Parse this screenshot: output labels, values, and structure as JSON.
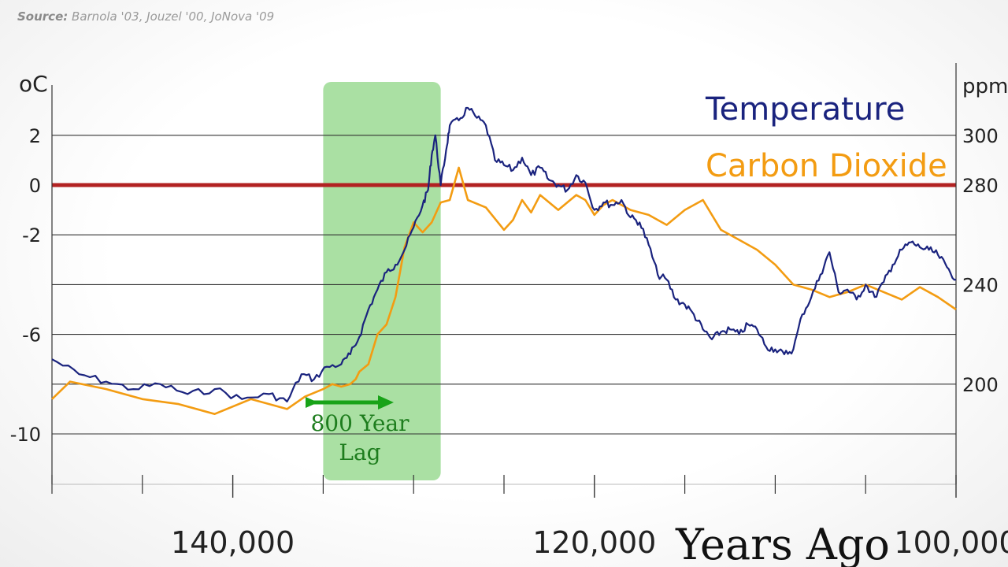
{
  "source": {
    "label": "Source:",
    "text": "Barnola '03, Jouzel '00, JoNova '09"
  },
  "chart_data": {
    "type": "line",
    "xlabel": "Years Ago",
    "xlim": [
      150000,
      100000
    ],
    "xticks_major": [
      140000,
      120000,
      100000
    ],
    "xtick_labels": [
      "140,000",
      "120,000",
      "100,000"
    ],
    "xticks_minor": [
      150000,
      145000,
      135000,
      130000,
      125000,
      115000,
      110000,
      105000
    ],
    "left_axis": {
      "unit": "oC",
      "ylim": [
        -12,
        4
      ],
      "ticks": [
        2,
        0,
        -2,
        -6,
        -10
      ],
      "tick_labels": [
        "2",
        "0",
        "-2",
        "-6",
        "-10"
      ],
      "gridlines": [
        2,
        0,
        -2,
        -4,
        -6,
        -8,
        -10
      ]
    },
    "right_axis": {
      "unit": "ppm",
      "ticks": [
        300,
        280,
        240,
        200
      ],
      "tick_labels": [
        "300",
        "280",
        "240",
        "200"
      ]
    },
    "reference_line": {
      "y": 0,
      "color": "#b22222"
    },
    "grid": true,
    "legend_position": "top-right",
    "series": [
      {
        "name": "Temperature",
        "color": "#1a237e",
        "axis": "left",
        "x": [
          150000,
          148500,
          147000,
          145500,
          144000,
          142500,
          141000,
          139500,
          138000,
          137000,
          136200,
          135500,
          134800,
          134000,
          133500,
          133000,
          132500,
          132000,
          131500,
          131000,
          130500,
          130000,
          129500,
          129200,
          129000,
          128800,
          128500,
          128200,
          128000,
          127500,
          127000,
          126500,
          126000,
          125500,
          125000,
          124500,
          124000,
          123500,
          123000,
          122500,
          122000,
          121500,
          121000,
          120500,
          120000,
          119500,
          119000,
          118500,
          118000,
          117500,
          117000,
          116500,
          116000,
          115500,
          115000,
          114500,
          114000,
          113500,
          113000,
          112500,
          112000,
          111500,
          111000,
          110500,
          110000,
          109500,
          109000,
          108500,
          108000,
          107500,
          107000,
          106500,
          106000,
          105500,
          105000,
          104500,
          104000,
          103500,
          103000,
          102500,
          102000,
          101500,
          101000,
          100500,
          100000
        ],
        "y": [
          -7.0,
          -7.6,
          -7.9,
          -8.2,
          -8.0,
          -8.4,
          -8.2,
          -8.6,
          -8.4,
          -8.7,
          -7.6,
          -7.8,
          -7.3,
          -7.2,
          -6.8,
          -6.1,
          -5.0,
          -4.2,
          -3.5,
          -3.2,
          -2.6,
          -1.7,
          -0.8,
          -0.2,
          1.2,
          2.0,
          0.0,
          1.4,
          2.4,
          2.6,
          3.1,
          2.7,
          2.4,
          1.0,
          0.8,
          0.6,
          1.1,
          0.4,
          0.7,
          0.2,
          0.0,
          -0.2,
          0.4,
          0.1,
          -1.0,
          -0.7,
          -0.8,
          -0.6,
          -1.3,
          -1.5,
          -2.4,
          -3.6,
          -3.8,
          -4.6,
          -4.8,
          -5.2,
          -5.8,
          -6.2,
          -5.9,
          -5.8,
          -6.0,
          -5.6,
          -5.8,
          -6.5,
          -6.6,
          -6.8,
          -6.6,
          -5.2,
          -4.5,
          -3.6,
          -2.7,
          -4.3,
          -4.2,
          -4.6,
          -4.0,
          -4.5,
          -3.9,
          -3.2,
          -2.6,
          -2.3,
          -2.5,
          -2.6,
          -2.8,
          -3.3,
          -3.8
        ]
      },
      {
        "name": "Carbon Dioxide",
        "color": "#f39c12",
        "axis": "left",
        "x": [
          150000,
          149000,
          147000,
          145000,
          143000,
          141000,
          139000,
          137000,
          136000,
          135000,
          134500,
          134000,
          133500,
          133200,
          133000,
          132500,
          132000,
          131500,
          131000,
          130500,
          130000,
          129500,
          129000,
          128500,
          128000,
          127500,
          127000,
          126000,
          125000,
          124500,
          124000,
          123500,
          123000,
          122000,
          121000,
          120500,
          120000,
          119500,
          119000,
          118000,
          117000,
          116000,
          115000,
          114000,
          113000,
          112000,
          111000,
          110000,
          109000,
          108000,
          107000,
          106000,
          105000,
          104000,
          103000,
          102000,
          101000,
          100000
        ],
        "y": [
          -8.6,
          -7.9,
          -8.2,
          -8.6,
          -8.8,
          -9.2,
          -8.6,
          -9.0,
          -8.5,
          -8.2,
          -8.0,
          -8.1,
          -8.0,
          -7.8,
          -7.5,
          -7.2,
          -6.0,
          -5.6,
          -4.5,
          -2.5,
          -1.5,
          -1.9,
          -1.5,
          -0.7,
          -0.6,
          0.7,
          -0.6,
          -0.9,
          -1.8,
          -1.4,
          -0.6,
          -1.1,
          -0.4,
          -1.0,
          -0.4,
          -0.6,
          -1.2,
          -0.8,
          -0.6,
          -1.0,
          -1.2,
          -1.6,
          -1.0,
          -0.6,
          -1.8,
          -2.2,
          -2.6,
          -3.2,
          -4.0,
          -4.2,
          -4.5,
          -4.3,
          -4.0,
          -4.3,
          -4.6,
          -4.1,
          -4.5,
          -5.0
        ]
      }
    ],
    "highlight": {
      "x_range": [
        135000,
        128500
      ],
      "color": "#7ccf72",
      "label_line1": "800 Year",
      "label_line2": "Lag"
    }
  }
}
